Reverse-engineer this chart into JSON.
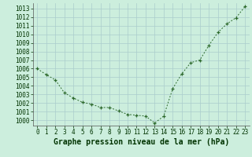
{
  "x": [
    0,
    1,
    2,
    3,
    4,
    5,
    6,
    7,
    8,
    9,
    10,
    11,
    12,
    13,
    14,
    15,
    16,
    17,
    18,
    19,
    20,
    21,
    22,
    23
  ],
  "y": [
    1006,
    1005.3,
    1004.7,
    1003.2,
    1002.6,
    1002.1,
    1001.9,
    1001.5,
    1001.5,
    1001.1,
    1000.7,
    1000.6,
    1000.5,
    999.7,
    1000.5,
    1003.7,
    1005.4,
    1006.7,
    1007.0,
    1008.7,
    1010.2,
    1011.2,
    1011.9,
    1013.2
  ],
  "line_color": "#2d6a2d",
  "marker": "+",
  "bg_color": "#cceedd",
  "grid_color": "#aacccc",
  "title": "Graphe pression niveau de la mer (hPa)",
  "title_fontsize": 7,
  "title_fontweight": "bold",
  "xlabel_ticks": [
    "0",
    "1",
    "2",
    "3",
    "4",
    "5",
    "6",
    "7",
    "8",
    "9",
    "10",
    "11",
    "12",
    "13",
    "14",
    "15",
    "16",
    "17",
    "18",
    "19",
    "20",
    "21",
    "22",
    "23"
  ],
  "ytick_labels": [
    1000,
    1001,
    1002,
    1003,
    1004,
    1005,
    1006,
    1007,
    1008,
    1009,
    1010,
    1011,
    1012,
    1013
  ],
  "ylim": [
    999.4,
    1013.6
  ],
  "xlim": [
    -0.5,
    23.5
  ],
  "tick_fontsize": 5.5,
  "label_color": "#003300"
}
